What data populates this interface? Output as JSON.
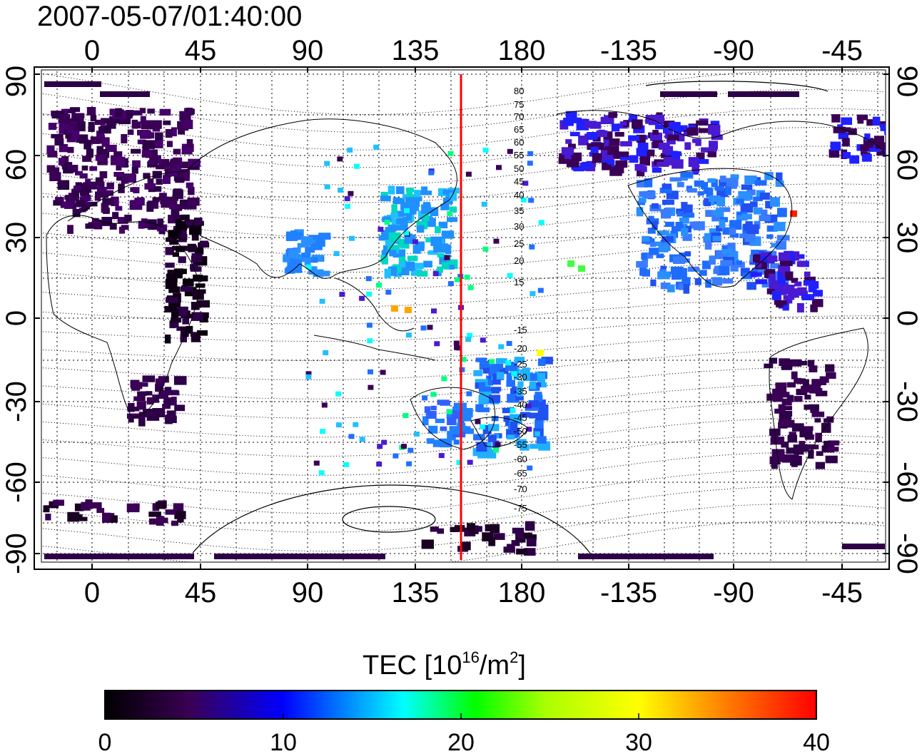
{
  "timestamp": "2007-05-07/01:40:00",
  "top_axis_labels": [
    "0",
    "45",
    "90",
    "135",
    "180",
    "-135",
    "-90",
    "-45"
  ],
  "bottom_axis_labels": [
    "0",
    "45",
    "90",
    "135",
    "180",
    "-135",
    "-90",
    "-45"
  ],
  "left_axis_labels": [
    "90",
    "60",
    "30",
    "0",
    "-30",
    "-60",
    "-90"
  ],
  "right_axis_labels": [
    "90",
    "60",
    "30",
    "0",
    "-30",
    "-60",
    "-90"
  ],
  "contour_labels_north": [
    "80",
    "75",
    "70",
    "65",
    "60",
    "55",
    "50",
    "45",
    "40",
    "35",
    "30",
    "25",
    "20",
    "15"
  ],
  "contour_labels_south": [
    "-15",
    "-20",
    "-25",
    "-30",
    "-35",
    "-40",
    "-45",
    "-50",
    "-55",
    "-60",
    "-65",
    "-70",
    "-75"
  ],
  "colorbar": {
    "title_main": "TEC  [10",
    "title_sup1": "16",
    "title_mid": "/m",
    "title_sup2": "2",
    "title_end": "]",
    "tick_labels": [
      "0",
      "10",
      "20",
      "30",
      "40"
    ],
    "colors": [
      "#000000",
      "#3a0055",
      "#0000ff",
      "#00ffff",
      "#00ff00",
      "#ffff00",
      "#ff0000"
    ]
  },
  "marker_line_color": "#ff0000"
}
